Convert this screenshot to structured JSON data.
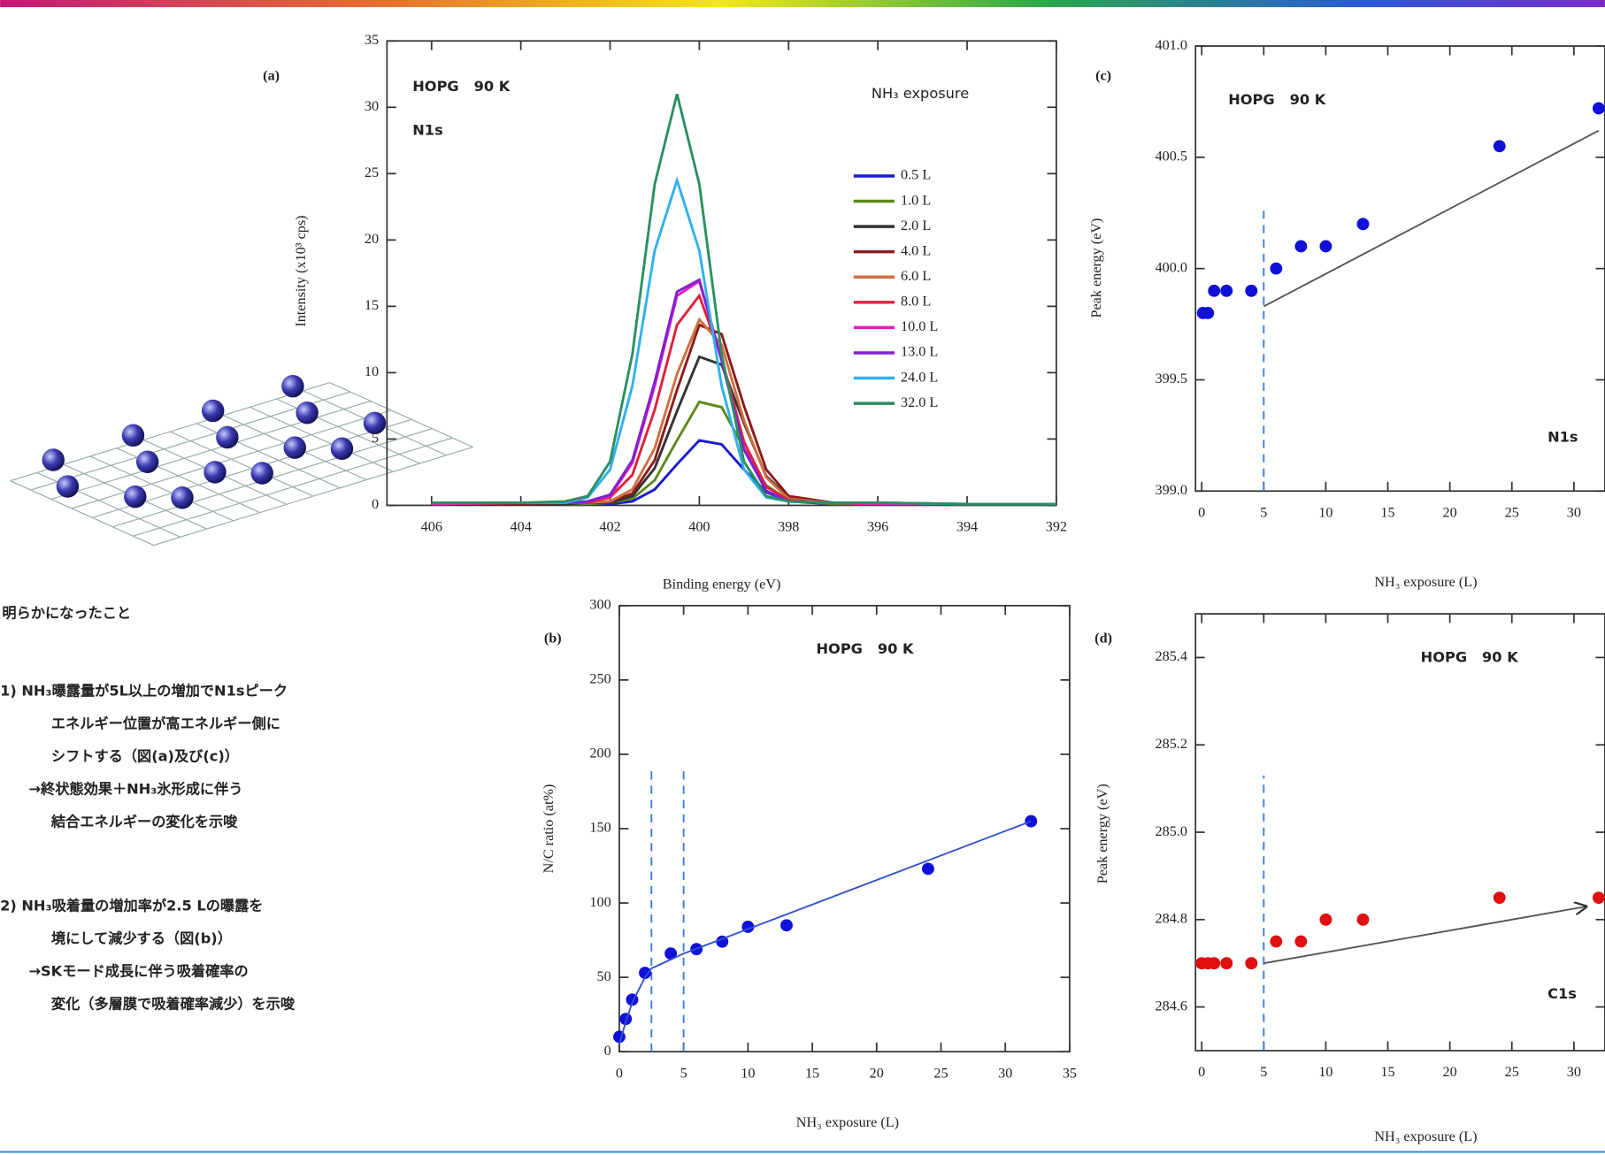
{
  "chart_data": [
    {
      "type": "line",
      "label": "(a)",
      "title": "HOPG   90 K",
      "annotation": "N1s",
      "xlabel": "Binding energy (eV)",
      "ylabel": "Intensity (x10³ cps)",
      "legend_title": "NH₃ exposure",
      "legend": "upper right",
      "x": [
        406,
        404,
        403,
        402.5,
        402,
        401.5,
        401,
        400.5,
        400,
        399.5,
        399,
        398.5,
        398,
        397,
        396,
        394,
        392
      ],
      "xlim": [
        407,
        392
      ],
      "xticks": [
        406,
        404,
        402,
        400,
        398,
        396,
        394,
        392
      ],
      "ylim": [
        0,
        35
      ],
      "yticks": [
        0,
        5,
        10,
        15,
        20,
        25,
        30,
        35
      ],
      "series": [
        {
          "name": "0.5 L",
          "color": "#1a1ad0",
          "values": [
            0.1,
            0.1,
            0.1,
            0.1,
            0.1,
            0.3,
            1.2,
            3.1,
            4.9,
            4.6,
            2.7,
            1.0,
            0.3,
            0.1,
            0.1,
            0.1,
            0.1
          ]
        },
        {
          "name": "1.0 L",
          "color": "#5a8a1a",
          "values": [
            0.1,
            0.1,
            0.1,
            0.1,
            0.2,
            0.5,
            1.9,
            4.9,
            7.8,
            7.4,
            4.3,
            1.5,
            0.4,
            0.1,
            0.1,
            0.1,
            0.1
          ]
        },
        {
          "name": "2.0 L",
          "color": "#333333",
          "values": [
            0.1,
            0.1,
            0.1,
            0.2,
            0.2,
            0.7,
            2.8,
            7.1,
            11.2,
            10.6,
            6.2,
            2.2,
            0.6,
            0.2,
            0.1,
            0.1,
            0.1
          ]
        },
        {
          "name": "4.0 L",
          "color": "#8b1a1a",
          "values": [
            0.1,
            0.1,
            0.2,
            0.2,
            0.3,
            0.9,
            3.4,
            8.7,
            13.6,
            12.9,
            7.5,
            2.7,
            0.7,
            0.2,
            0.1,
            0.1,
            0.1
          ]
        },
        {
          "name": "6.0 L",
          "color": "#d07040",
          "values": [
            0.1,
            0.2,
            0.2,
            0.2,
            0.3,
            1.2,
            4.3,
            9.9,
            14.0,
            12.1,
            6.4,
            2.1,
            0.5,
            0.2,
            0.1,
            0.1,
            0.1
          ]
        },
        {
          "name": "8.0 L",
          "color": "#e0203a",
          "values": [
            0.1,
            0.2,
            0.2,
            0.2,
            0.6,
            2.3,
            7.2,
            13.6,
            15.8,
            11.1,
            4.8,
            1.4,
            0.4,
            0.2,
            0.1,
            0.1,
            0.1
          ]
        },
        {
          "name": "10.0 L",
          "color": "#e020c0",
          "values": [
            0.1,
            0.2,
            0.2,
            0.3,
            0.7,
            3.2,
            9.0,
            15.8,
            16.9,
            11.0,
            4.3,
            1.1,
            0.3,
            0.2,
            0.1,
            0.1,
            0.1
          ]
        },
        {
          "name": "13.0 L",
          "color": "#8020d0",
          "values": [
            0.2,
            0.2,
            0.2,
            0.3,
            0.8,
            3.4,
            9.3,
            16.1,
            17.0,
            10.9,
            4.2,
            1.1,
            0.3,
            0.2,
            0.2,
            0.1,
            0.1
          ]
        },
        {
          "name": "24.0 L",
          "color": "#30b0f0",
          "values": [
            0.2,
            0.2,
            0.2,
            0.6,
            2.7,
            9.0,
            19.2,
            24.5,
            19.2,
            9.0,
            2.7,
            0.6,
            0.3,
            0.2,
            0.2,
            0.1,
            0.1
          ]
        },
        {
          "name": "32.0 L",
          "color": "#2a9060",
          "values": [
            0.2,
            0.2,
            0.3,
            0.7,
            3.3,
            11.4,
            24.2,
            31.0,
            24.2,
            11.4,
            3.3,
            0.7,
            0.3,
            0.2,
            0.2,
            0.1,
            0.1
          ]
        }
      ]
    },
    {
      "type": "scatter",
      "label": "(b)",
      "title": "HOPG   90 K",
      "xlabel": "NH₃ exposure (L)",
      "ylabel": "N/C ratio (at%)",
      "xlim": [
        0,
        35
      ],
      "xticks": [
        0,
        5,
        10,
        15,
        20,
        25,
        30,
        35
      ],
      "ylim": [
        0,
        300
      ],
      "yticks": [
        0,
        50,
        100,
        150,
        200,
        250,
        300
      ],
      "vlines": [
        2.5,
        5
      ],
      "series": [
        {
          "color": "#1010d8",
          "style": "points",
          "x": [
            0,
            0.5,
            1,
            2,
            4,
            6,
            8,
            10,
            13,
            24,
            32
          ],
          "values": [
            10,
            22,
            35,
            53,
            66,
            69,
            74,
            84,
            85,
            123,
            155
          ]
        },
        {
          "color": "#3050d0",
          "style": "line",
          "x": [
            0,
            0.5,
            1,
            2,
            2.5,
            5,
            32
          ],
          "values": [
            5,
            20,
            33,
            50,
            56,
            66,
            155
          ]
        }
      ]
    },
    {
      "type": "scatter",
      "label": "(c)",
      "title": "HOPG   90 K",
      "annotation": "N1s",
      "xlabel": "NH₃ exposure (L)",
      "ylabel": "Peak energy (eV)",
      "xlim": [
        -0.5,
        32.5
      ],
      "xticks": [
        0,
        5,
        10,
        15,
        20,
        25,
        30
      ],
      "ylim": [
        399,
        401
      ],
      "yticks": [
        {
          "value": 399,
          "label": "399.0"
        },
        399.5,
        {
          "value": 400,
          "label": "400.0"
        },
        400.5,
        {
          "value": 401,
          "label": "401.0"
        }
      ],
      "vlines": [
        5
      ],
      "series": [
        {
          "color": "#1010d8",
          "style": "points",
          "x": [
            0.1,
            0.5,
            1,
            2,
            4,
            6,
            8,
            10,
            13,
            24,
            32
          ],
          "values": [
            399.8,
            399.8,
            399.9,
            399.9,
            399.9,
            400.0,
            400.1,
            400.1,
            400.2,
            400.55,
            400.72
          ]
        },
        {
          "color": "#555555",
          "style": "line",
          "x": [
            5,
            32
          ],
          "values": [
            399.83,
            400.62
          ]
        }
      ]
    },
    {
      "type": "scatter",
      "label": "(d)",
      "title": "HOPG   90 K",
      "annotation": "C1s",
      "xlabel": "NH₃ exposure (L)",
      "ylabel": "Peak energy (eV)",
      "xlim": [
        -0.5,
        32.5
      ],
      "xticks": [
        0,
        5,
        10,
        15,
        20,
        25,
        30
      ],
      "ylim": [
        284.5,
        285.5
      ],
      "yticks": [
        284.6,
        284.8,
        {
          "value": 285,
          "label": "285.0"
        },
        285.2,
        285.4
      ],
      "vlines": [
        5
      ],
      "series": [
        {
          "color": "#e01010",
          "style": "points",
          "x": [
            0,
            0.5,
            1,
            2,
            4,
            6,
            8,
            10,
            13,
            24,
            32
          ],
          "values": [
            284.7,
            284.7,
            284.7,
            284.7,
            284.7,
            284.75,
            284.75,
            284.8,
            284.8,
            284.85,
            284.85
          ]
        },
        {
          "color": "#555555",
          "style": "arrow",
          "x": [
            5,
            31
          ],
          "values": [
            284.7,
            284.83
          ]
        }
      ]
    }
  ],
  "findings": {
    "heading": "明らかになったこと",
    "items": [
      {
        "lines": [
          "1) NH₃曝露量が5L以上の増加でN1sピーク",
          "エネルギー位置が高エネルギー側に",
          "シフトする（図(a)及び(c)）"
        ],
        "implication": [
          "→終状態効果＋NH₃氷形成に伴う",
          "結合エネルギーの変化を示唆"
        ]
      },
      {
        "lines": [
          "2) NH₃吸着量の増加率が2.5 Lの曝露を",
          "境にして減少する（図(b)）"
        ],
        "implication": [
          "→SKモード成長に伴う吸着確率の",
          "変化（多層膜で吸着確率減少）を示唆"
        ]
      }
    ]
  }
}
